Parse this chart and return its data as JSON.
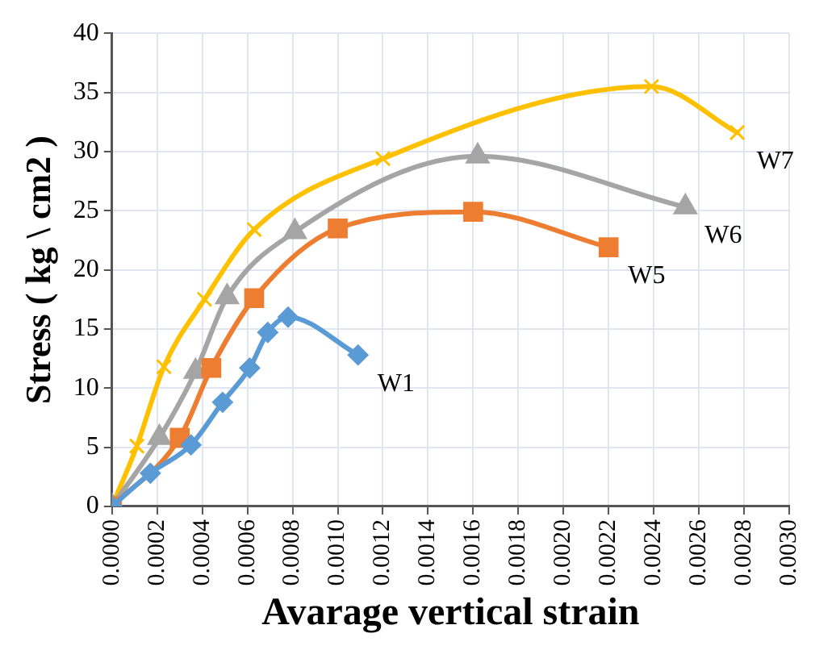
{
  "chart_data": {
    "type": "line",
    "xlabel": "Avarage vertical strain",
    "ylabel": "Stress ( kg \\ cm2 )",
    "xlim": [
      0,
      0.003
    ],
    "ylim": [
      0,
      40
    ],
    "xticks": [
      {
        "value": 0,
        "label": "0.0000"
      },
      {
        "value": 0.0002,
        "label": "0.0002"
      },
      {
        "value": 0.0004,
        "label": "0.0004"
      },
      {
        "value": 0.0006,
        "label": "0.0006"
      },
      {
        "value": 0.0008,
        "label": "0.0008"
      },
      {
        "value": 0.001,
        "label": "0.0010"
      },
      {
        "value": 0.0012,
        "label": "0.0012"
      },
      {
        "value": 0.0014,
        "label": "0.0014"
      },
      {
        "value": 0.0016,
        "label": "0.0016"
      },
      {
        "value": 0.0018,
        "label": "0.0018"
      },
      {
        "value": 0.002,
        "label": "0.0020"
      },
      {
        "value": 0.0022,
        "label": "0.0022"
      },
      {
        "value": 0.0024,
        "label": "0.0024"
      },
      {
        "value": 0.0026,
        "label": "0.0026"
      },
      {
        "value": 0.0028,
        "label": "0.0028"
      },
      {
        "value": 0.003,
        "label": "0.0030"
      }
    ],
    "yticks": [
      0,
      5,
      10,
      15,
      20,
      25,
      30,
      35,
      40
    ],
    "grid": true,
    "legend": false,
    "series": [
      {
        "name": "W1",
        "color": "#5b9bd5",
        "marker": "diamond",
        "x": [
          0,
          0.00017,
          0.00035,
          0.00049,
          0.00061,
          0.00069,
          0.00078,
          0.00109
        ],
        "values": [
          0,
          2.8,
          5.2,
          8.8,
          11.7,
          14.7,
          16,
          12.8
        ]
      },
      {
        "name": "W5",
        "color": "#ed7d31",
        "marker": "square",
        "x": [
          0,
          0.0003,
          0.00044,
          0.00063,
          0.001,
          0.0016,
          0.0022
        ],
        "values": [
          0,
          5.8,
          11.7,
          17.6,
          23.5,
          24.9,
          21.9
        ]
      },
      {
        "name": "W6",
        "color": "#a5a5a5",
        "marker": "triangle",
        "x": [
          0,
          0.00021,
          0.00037,
          0.00051,
          0.00081,
          0.00162,
          0.00254
        ],
        "values": [
          0,
          5.8,
          11.4,
          17.7,
          23.2,
          29.6,
          25.3
        ]
      },
      {
        "name": "W7",
        "color": "#ffc000",
        "marker": "cross",
        "x": [
          0,
          0.00011,
          0.00023,
          0.00041,
          0.00063,
          0.0012,
          0.00239,
          0.00277
        ],
        "values": [
          0,
          5.1,
          11.8,
          17.5,
          23.4,
          29.4,
          35.5,
          31.6
        ]
      }
    ]
  }
}
